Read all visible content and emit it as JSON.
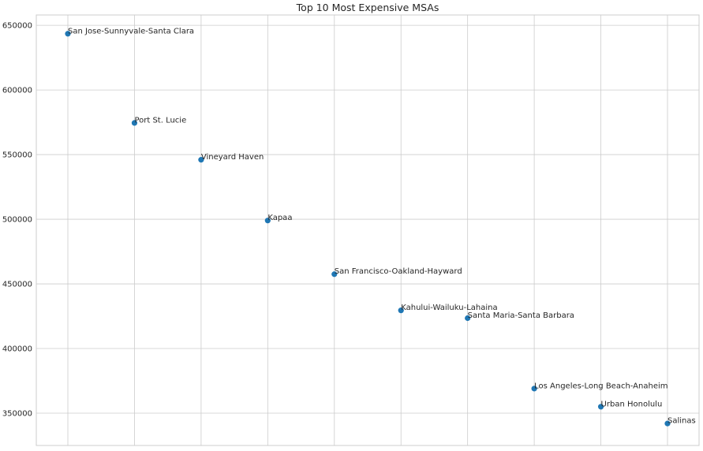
{
  "chart_data": {
    "type": "scatter",
    "title": "Top 10 Most Expensive MSAs",
    "xlabel": "",
    "ylabel": "",
    "ylim": [
      325000,
      658000
    ],
    "yticks": [
      350000,
      400000,
      450000,
      500000,
      550000,
      600000,
      650000
    ],
    "ytick_labels": [
      "350000",
      "400000",
      "450000",
      "500000",
      "550000",
      "600000",
      "650000"
    ],
    "grid": true,
    "marker_color": "#1f77b4",
    "points": [
      {
        "x": 0,
        "y": 643500,
        "label": "San Jose-Sunnyvale-Santa Clara"
      },
      {
        "x": 1,
        "y": 574500,
        "label": "Port St. Lucie"
      },
      {
        "x": 2,
        "y": 546000,
        "label": "Vineyard Haven"
      },
      {
        "x": 3,
        "y": 499000,
        "label": "Kapaa"
      },
      {
        "x": 4,
        "y": 457500,
        "label": "San Francisco-Oakland-Hayward"
      },
      {
        "x": 5,
        "y": 429500,
        "label": "Kahului-Wailuku-Lahaina"
      },
      {
        "x": 6,
        "y": 423500,
        "label": "Santa Maria-Santa Barbara"
      },
      {
        "x": 7,
        "y": 369000,
        "label": "Los Angeles-Long Beach-Anaheim"
      },
      {
        "x": 8,
        "y": 355000,
        "label": "Urban Honolulu"
      },
      {
        "x": 9,
        "y": 342000,
        "label": "Salinas"
      }
    ]
  }
}
